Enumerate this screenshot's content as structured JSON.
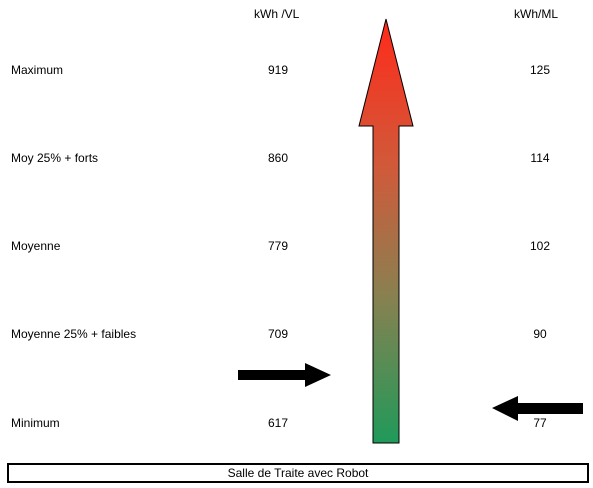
{
  "headers": {
    "col_a": "kWh /VL",
    "col_b": "kWh/ML"
  },
  "rows": [
    {
      "label": "Maximum",
      "value_a": "919",
      "value_b": "125"
    },
    {
      "label": "Moy 25% + forts",
      "value_a": "860",
      "value_b": "114"
    },
    {
      "label": "Moyenne",
      "value_a": "779",
      "value_b": "102"
    },
    {
      "label": "Moyenne 25% + faibles",
      "value_a": "709",
      "value_b": "90"
    },
    {
      "label": "Minimum",
      "value_a": "617",
      "value_b": "77"
    }
  ],
  "caption": "Salle de Traite avec Robot",
  "colors": {
    "gradient_top": "#ff2a1a",
    "gradient_bottom": "#1f9a5a",
    "pointer": "#000000"
  }
}
